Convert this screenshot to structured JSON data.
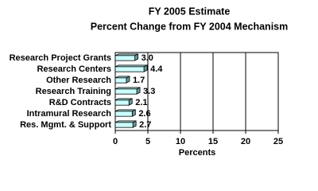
{
  "chart_data": {
    "type": "hbar",
    "title": "FY 2005 Estimate",
    "subtitle": "Percent Change from FY 2004 Mechanism",
    "x_label": "Percents",
    "categories": [
      "Research Project Grants",
      "Research Centers",
      "Other Research",
      "Research Training",
      "R&D Contracts",
      "Intramural Research",
      "Res. Mgmt. & Support"
    ],
    "values": [
      3.0,
      4.4,
      1.7,
      3.3,
      2.1,
      2.6,
      2.7
    ],
    "value_labels": [
      "3.0",
      "4.4",
      "1.7",
      "3.3",
      "2.1",
      "2.6",
      "2.7"
    ],
    "color": "#ccffff",
    "xlim": [
      0,
      25
    ],
    "xticks": [
      0,
      5,
      10,
      15,
      20,
      25
    ],
    "grid": true
  }
}
